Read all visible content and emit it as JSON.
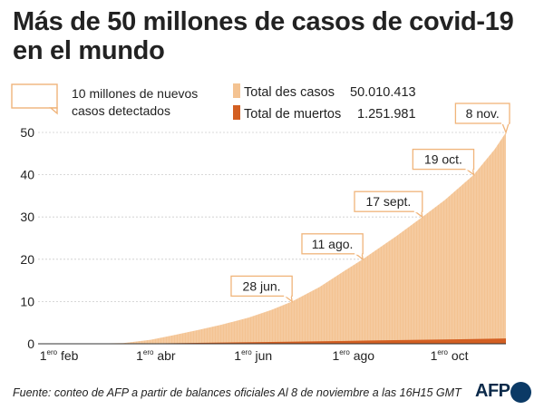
{
  "title_line1": "Más de 50 millones de casos de covid-19",
  "title_line2": "en el mundo",
  "legend": {
    "scale_note_line1": "10 millones de nuevos",
    "scale_note_line2": "casos detectados",
    "cases_label": "Total des casos",
    "cases_value": "50.010.413",
    "deaths_label": "Total de muertos",
    "deaths_value": "1.251.981"
  },
  "footer": "Fuente: conteo de AFP a partir de balances oficiales  Al 8 de noviembre a las 16H15 GMT",
  "logo_text": "AFP",
  "colors": {
    "cases": "#f4c392",
    "deaths": "#d35f22",
    "callout_border": "#f0b47a",
    "grid": "#cccccc"
  },
  "chart_data": {
    "type": "area",
    "title": "Más de 50 millones de casos de covid-19 en el mundo",
    "ylabel": "",
    "ylim": [
      0,
      50
    ],
    "y_ticks": [
      0,
      10,
      20,
      30,
      40,
      50
    ],
    "x_tick_labels": [
      {
        "date": "2020-02-01",
        "sup": "ero",
        "text": "feb"
      },
      {
        "date": "2020-04-01",
        "sup": "ero",
        "text": "abr"
      },
      {
        "date": "2020-06-01",
        "sup": "ero",
        "text": "jun"
      },
      {
        "date": "2020-08-01",
        "sup": "ero",
        "text": "ago"
      },
      {
        "date": "2020-10-01",
        "sup": "ero",
        "text": "oct"
      }
    ],
    "x_range": [
      "2020-01-22",
      "2020-11-08"
    ],
    "series": [
      {
        "name": "Total des casos",
        "units": "millones",
        "points": [
          [
            "2020-01-22",
            0.0
          ],
          [
            "2020-02-15",
            0.07
          ],
          [
            "2020-03-01",
            0.09
          ],
          [
            "2020-03-15",
            0.17
          ],
          [
            "2020-04-01",
            0.93
          ],
          [
            "2020-04-15",
            2.0
          ],
          [
            "2020-05-01",
            3.3
          ],
          [
            "2020-05-15",
            4.5
          ],
          [
            "2020-06-01",
            6.2
          ],
          [
            "2020-06-15",
            8.0
          ],
          [
            "2020-06-28",
            10.0
          ],
          [
            "2020-07-15",
            13.4
          ],
          [
            "2020-08-01",
            17.6
          ],
          [
            "2020-08-11",
            20.0
          ],
          [
            "2020-09-01",
            25.5
          ],
          [
            "2020-09-17",
            30.0
          ],
          [
            "2020-10-01",
            34.0
          ],
          [
            "2020-10-19",
            40.0
          ],
          [
            "2020-11-01",
            46.0
          ],
          [
            "2020-11-08",
            50.01
          ]
        ]
      },
      {
        "name": "Total de muertos",
        "units": "millones",
        "points": [
          [
            "2020-01-22",
            0.0
          ],
          [
            "2020-03-15",
            0.006
          ],
          [
            "2020-04-15",
            0.13
          ],
          [
            "2020-05-15",
            0.3
          ],
          [
            "2020-06-15",
            0.44
          ],
          [
            "2020-07-15",
            0.58
          ],
          [
            "2020-08-15",
            0.77
          ],
          [
            "2020-09-15",
            0.93
          ],
          [
            "2020-10-15",
            1.09
          ],
          [
            "2020-11-08",
            1.25
          ]
        ]
      }
    ],
    "annotations": [
      {
        "date": "2020-06-28",
        "value": 10,
        "label": "28 jun."
      },
      {
        "date": "2020-08-11",
        "value": 20,
        "label": "11 ago."
      },
      {
        "date": "2020-09-17",
        "value": 30,
        "label": "17 sept."
      },
      {
        "date": "2020-10-19",
        "value": 40,
        "label": "19 oct."
      },
      {
        "date": "2020-11-08",
        "value": 50,
        "label": "8 nov."
      }
    ]
  }
}
